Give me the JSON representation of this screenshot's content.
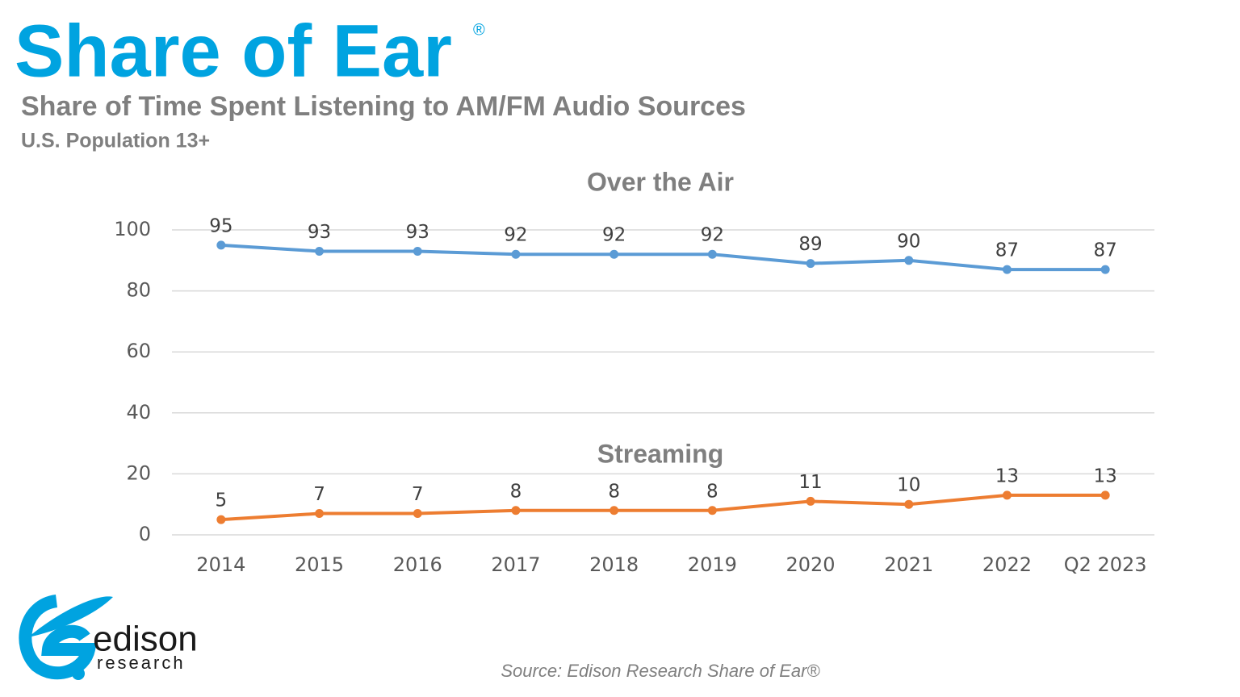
{
  "chart_data": {
    "type": "line",
    "title": "Share of Ear",
    "title_mark": "®",
    "subtitle": "Share of Time Spent Listening to AM/FM Audio Sources",
    "population": "U.S. Population 13+",
    "categories": [
      "2014",
      "2015",
      "2016",
      "2017",
      "2018",
      "2019",
      "2020",
      "2021",
      "2022",
      "Q2 2023"
    ],
    "series": [
      {
        "name": "Over the Air",
        "color": "#5b9bd5",
        "values": [
          95,
          93,
          93,
          92,
          92,
          92,
          89,
          90,
          87,
          87
        ]
      },
      {
        "name": "Streaming",
        "color": "#ed7d31",
        "values": [
          5,
          7,
          7,
          8,
          8,
          8,
          11,
          10,
          13,
          13
        ]
      }
    ],
    "ylim": [
      0,
      100
    ],
    "yticks": [
      0,
      20,
      40,
      60,
      80,
      100
    ],
    "grid": true,
    "source": "Source: Edison Research Share of Ear®"
  },
  "logo": {
    "name": "edison",
    "tagline": "research"
  }
}
